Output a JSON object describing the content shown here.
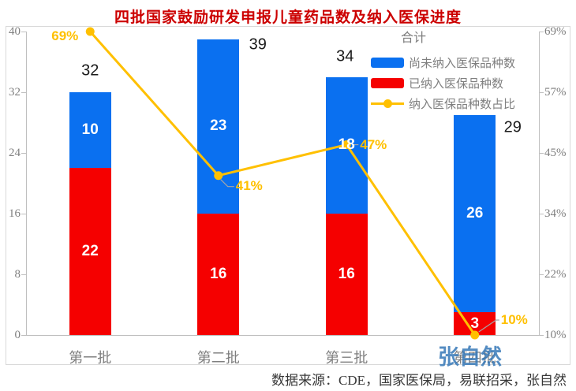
{
  "title": "四批国家鼓励研发申报儿童药品数及纳入医保进度",
  "legend": {
    "title": "合计",
    "items": [
      {
        "label": "尚未纳入医保品种数",
        "marker": "bar",
        "color": "#0a70f0"
      },
      {
        "label": "已纳入医保品种数",
        "marker": "bar",
        "color": "#f50000"
      },
      {
        "label": "纳入医保品种数占比",
        "marker": "line-dot",
        "color": "#ffc000"
      }
    ]
  },
  "chart_data": {
    "type": "bar",
    "subtype": "stacked-bars-with-percentage-line",
    "title": "四批国家鼓励研发申报儿童药品数及纳入医保进度",
    "categories": [
      "第一批",
      "第二批",
      "第三批",
      "第四批"
    ],
    "series": [
      {
        "name": "已纳入医保品种数",
        "type": "bar",
        "stack": "total",
        "color": "#f50000",
        "values": [
          22,
          16,
          16,
          3
        ]
      },
      {
        "name": "尚未纳入医保品种数",
        "type": "bar",
        "stack": "total",
        "color": "#0a70f0",
        "values": [
          10,
          23,
          18,
          26
        ]
      },
      {
        "name": "合计",
        "type": "total-label",
        "values": [
          32,
          39,
          34,
          29
        ]
      },
      {
        "name": "纳入医保品种数占比",
        "type": "line",
        "axis": "right",
        "color": "#ffc000",
        "values": [
          69,
          41,
          47,
          10
        ],
        "labels": [
          "69%",
          "41%",
          "47%",
          "10%"
        ]
      }
    ],
    "left_axis": {
      "min": 0,
      "max": 40,
      "ticks": [
        "40",
        "32",
        "24",
        "16",
        "8",
        "0"
      ]
    },
    "right_axis": {
      "min": 10,
      "max": 69,
      "ticks": [
        "69%",
        "57%",
        "45%",
        "34%",
        "22%",
        "10%"
      ]
    },
    "grid": false,
    "legend_position": "top-right"
  },
  "watermark": "张自然",
  "source_note": "数据来源：CDE，国家医保局，易联招采，张自然",
  "colors": {
    "title": "#cc0000",
    "bar_blue": "#0a70f0",
    "bar_red": "#f50000",
    "line_gold": "#ffc000",
    "axis_text": "#7f7f7f",
    "axis_line": "#bfbfbf",
    "legend_text": "#7f7f7f",
    "total_label": "#1a1a1a",
    "bar_label": "#ffffff",
    "watermark": "#3779b8",
    "source_text": "#383838",
    "frame": "#d9d9d9",
    "leader": "#a6a6a6"
  }
}
